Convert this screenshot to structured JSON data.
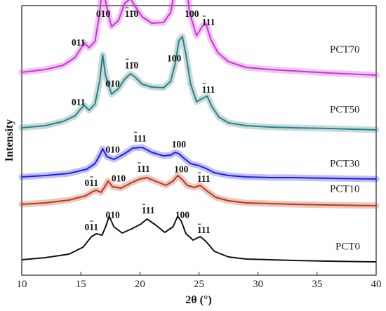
{
  "chart_data": {
    "type": "line",
    "xlabel": "2θ (°)",
    "ylabel": "Intensity",
    "xlim": [
      10,
      40
    ],
    "xticks": [
      10,
      15,
      20,
      25,
      30,
      35,
      40
    ],
    "y_ticks_shown": false,
    "grid": false,
    "legend": "none (series labeled inline at right)",
    "series": [
      {
        "name": "PCT70",
        "color": "#c936d8",
        "offset": 262,
        "x": [
          10,
          12,
          13.5,
          14.5,
          15,
          15.3,
          15.7,
          16.2,
          16.6,
          16.85,
          17.1,
          17.6,
          18.2,
          18.7,
          19.2,
          19.6,
          20.2,
          21,
          22,
          22.6,
          23,
          23.3,
          23.5,
          23.8,
          24.2,
          24.8,
          25.3,
          25.6,
          26,
          26.6,
          27.5,
          29,
          31,
          33,
          36,
          40
        ],
        "y": [
          10,
          14,
          20,
          31,
          44,
          52,
          45,
          54,
          95,
          137,
          110,
          75,
          84,
          108,
          115,
          104,
          89,
          80,
          81,
          95,
          130,
          178,
          196,
          165,
          95,
          62,
          76,
          79,
          57,
          38,
          25,
          17,
          14,
          12,
          9,
          6
        ]
      },
      {
        "name": "PCT50",
        "color": "#2e7f82",
        "offset": 185,
        "x": [
          10,
          12,
          13.5,
          14.5,
          15,
          15.3,
          15.7,
          16.2,
          16.6,
          16.85,
          17.1,
          17.6,
          18.2,
          18.7,
          19.2,
          19.6,
          20.2,
          21,
          22,
          22.6,
          23,
          23.3,
          23.6,
          23.9,
          24.3,
          24.8,
          25.3,
          25.7,
          26.1,
          26.7,
          27.5,
          29,
          31,
          33,
          36,
          40
        ],
        "y": [
          8,
          11,
          17,
          25,
          35,
          40,
          33,
          42,
          75,
          112,
          82,
          56,
          64,
          77,
          85,
          80,
          70,
          66,
          65,
          74,
          100,
          132,
          138,
          112,
          70,
          45,
          50,
          53,
          38,
          23,
          15,
          11,
          9,
          8,
          7,
          5
        ]
      },
      {
        "name": "PCT30",
        "color": "#2020e0",
        "offset": 118,
        "x": [
          10,
          12,
          14,
          15.5,
          16.2,
          16.6,
          16.85,
          17.2,
          17.8,
          18.6,
          19.4,
          20.2,
          21,
          22,
          22.6,
          23,
          23.3,
          23.7,
          24.3,
          25,
          25.6,
          26.3,
          27.5,
          29,
          31,
          33,
          36,
          40
        ],
        "y": [
          5,
          7,
          10,
          16,
          24,
          36,
          45,
          34,
          30,
          37,
          46,
          47,
          40,
          35,
          36,
          40,
          38,
          32,
          24,
          21,
          17,
          11,
          7,
          5,
          4,
          4,
          3,
          2
        ]
      },
      {
        "name": "PCT10",
        "color": "#b8371c",
        "offset": 80,
        "x": [
          10,
          12,
          14,
          15.4,
          16,
          16.3,
          16.7,
          17,
          17.3,
          17.7,
          18.4,
          19.2,
          20,
          20.6,
          21.3,
          22.2,
          22.8,
          23.2,
          23.6,
          24,
          24.6,
          25.1,
          25.6,
          26.4,
          27.5,
          29,
          31,
          33,
          36,
          40
        ],
        "y": [
          4,
          6,
          10,
          16,
          22,
          24,
          21,
          28,
          37,
          29,
          27,
          34,
          40,
          42,
          37,
          31,
          37,
          45,
          39,
          31,
          28,
          31,
          24,
          14,
          9,
          6,
          5,
          4,
          3,
          2
        ]
      },
      {
        "name": "PCT0",
        "color": "#111111",
        "offset": 0,
        "x": [
          10,
          12,
          14,
          15.2,
          15.9,
          16.3,
          16.8,
          17.1,
          17.4,
          17.8,
          18.5,
          19.3,
          20.1,
          20.6,
          21.3,
          22.1,
          22.8,
          23.2,
          23.5,
          23.9,
          24.5,
          25.1,
          25.6,
          26.3,
          27.5,
          29,
          31,
          33,
          36,
          40
        ],
        "y": [
          5,
          8,
          13,
          23,
          38,
          42,
          40,
          52,
          67,
          52,
          43,
          49,
          56,
          63,
          55,
          44,
          52,
          67,
          60,
          42,
          33,
          38,
          31,
          17,
          9,
          6,
          5,
          4,
          3,
          2
        ]
      }
    ],
    "annotations": [
      {
        "text": "010",
        "x": 16.9,
        "curve": 0,
        "bar": false
      },
      {
        "text": "11̄0",
        "x": 19.3,
        "curve": 0,
        "bar": true,
        "bar_first": true
      },
      {
        "text": "100",
        "x": 24.4,
        "curve": 0,
        "bar": false
      },
      {
        "text": "011",
        "x": 14.8,
        "curve": 0,
        "bar": false
      },
      {
        "text": "111",
        "x": 25.8,
        "curve": 0,
        "bar": true,
        "bar_first": true
      },
      {
        "text": "010",
        "x": 17.7,
        "curve": 1,
        "bar": false
      },
      {
        "text": "11̄0",
        "x": 19.3,
        "curve": 1,
        "bar": true,
        "bar_first": true
      },
      {
        "text": "100",
        "x": 22.9,
        "curve": 1,
        "bar": false
      },
      {
        "text": "011",
        "x": 14.8,
        "curve": 1,
        "bar": false
      },
      {
        "text": "111",
        "x": 25.8,
        "curve": 1,
        "bar": true,
        "bar_first": true
      },
      {
        "text": "010",
        "x": 17.7,
        "curve": 2,
        "bar": false
      },
      {
        "text": "111",
        "x": 20.0,
        "curve": 2,
        "bar": true,
        "bar_first": true
      },
      {
        "text": "100",
        "x": 23.3,
        "curve": 2,
        "bar": false
      },
      {
        "text": "011",
        "x": 15.9,
        "curve": 3,
        "bar": true,
        "bar_mid": true
      },
      {
        "text": "010",
        "x": 18.2,
        "curve": 3,
        "bar": false
      },
      {
        "text": "111",
        "x": 20.3,
        "curve": 3,
        "bar": true,
        "bar_first": true
      },
      {
        "text": "100",
        "x": 23.5,
        "curve": 3,
        "bar": false
      },
      {
        "text": "111",
        "x": 25.4,
        "curve": 3,
        "bar": true,
        "bar_first": true
      },
      {
        "text": "011",
        "x": 15.9,
        "curve": 4,
        "bar": true,
        "bar_mid": true
      },
      {
        "text": "010",
        "x": 17.7,
        "curve": 4,
        "bar": false
      },
      {
        "text": "111",
        "x": 20.7,
        "curve": 4,
        "bar": true,
        "bar_first": true
      },
      {
        "text": "100",
        "x": 23.6,
        "curve": 4,
        "bar": false
      },
      {
        "text": "111",
        "x": 25.4,
        "curve": 4,
        "bar": true,
        "bar_first": true
      }
    ]
  }
}
